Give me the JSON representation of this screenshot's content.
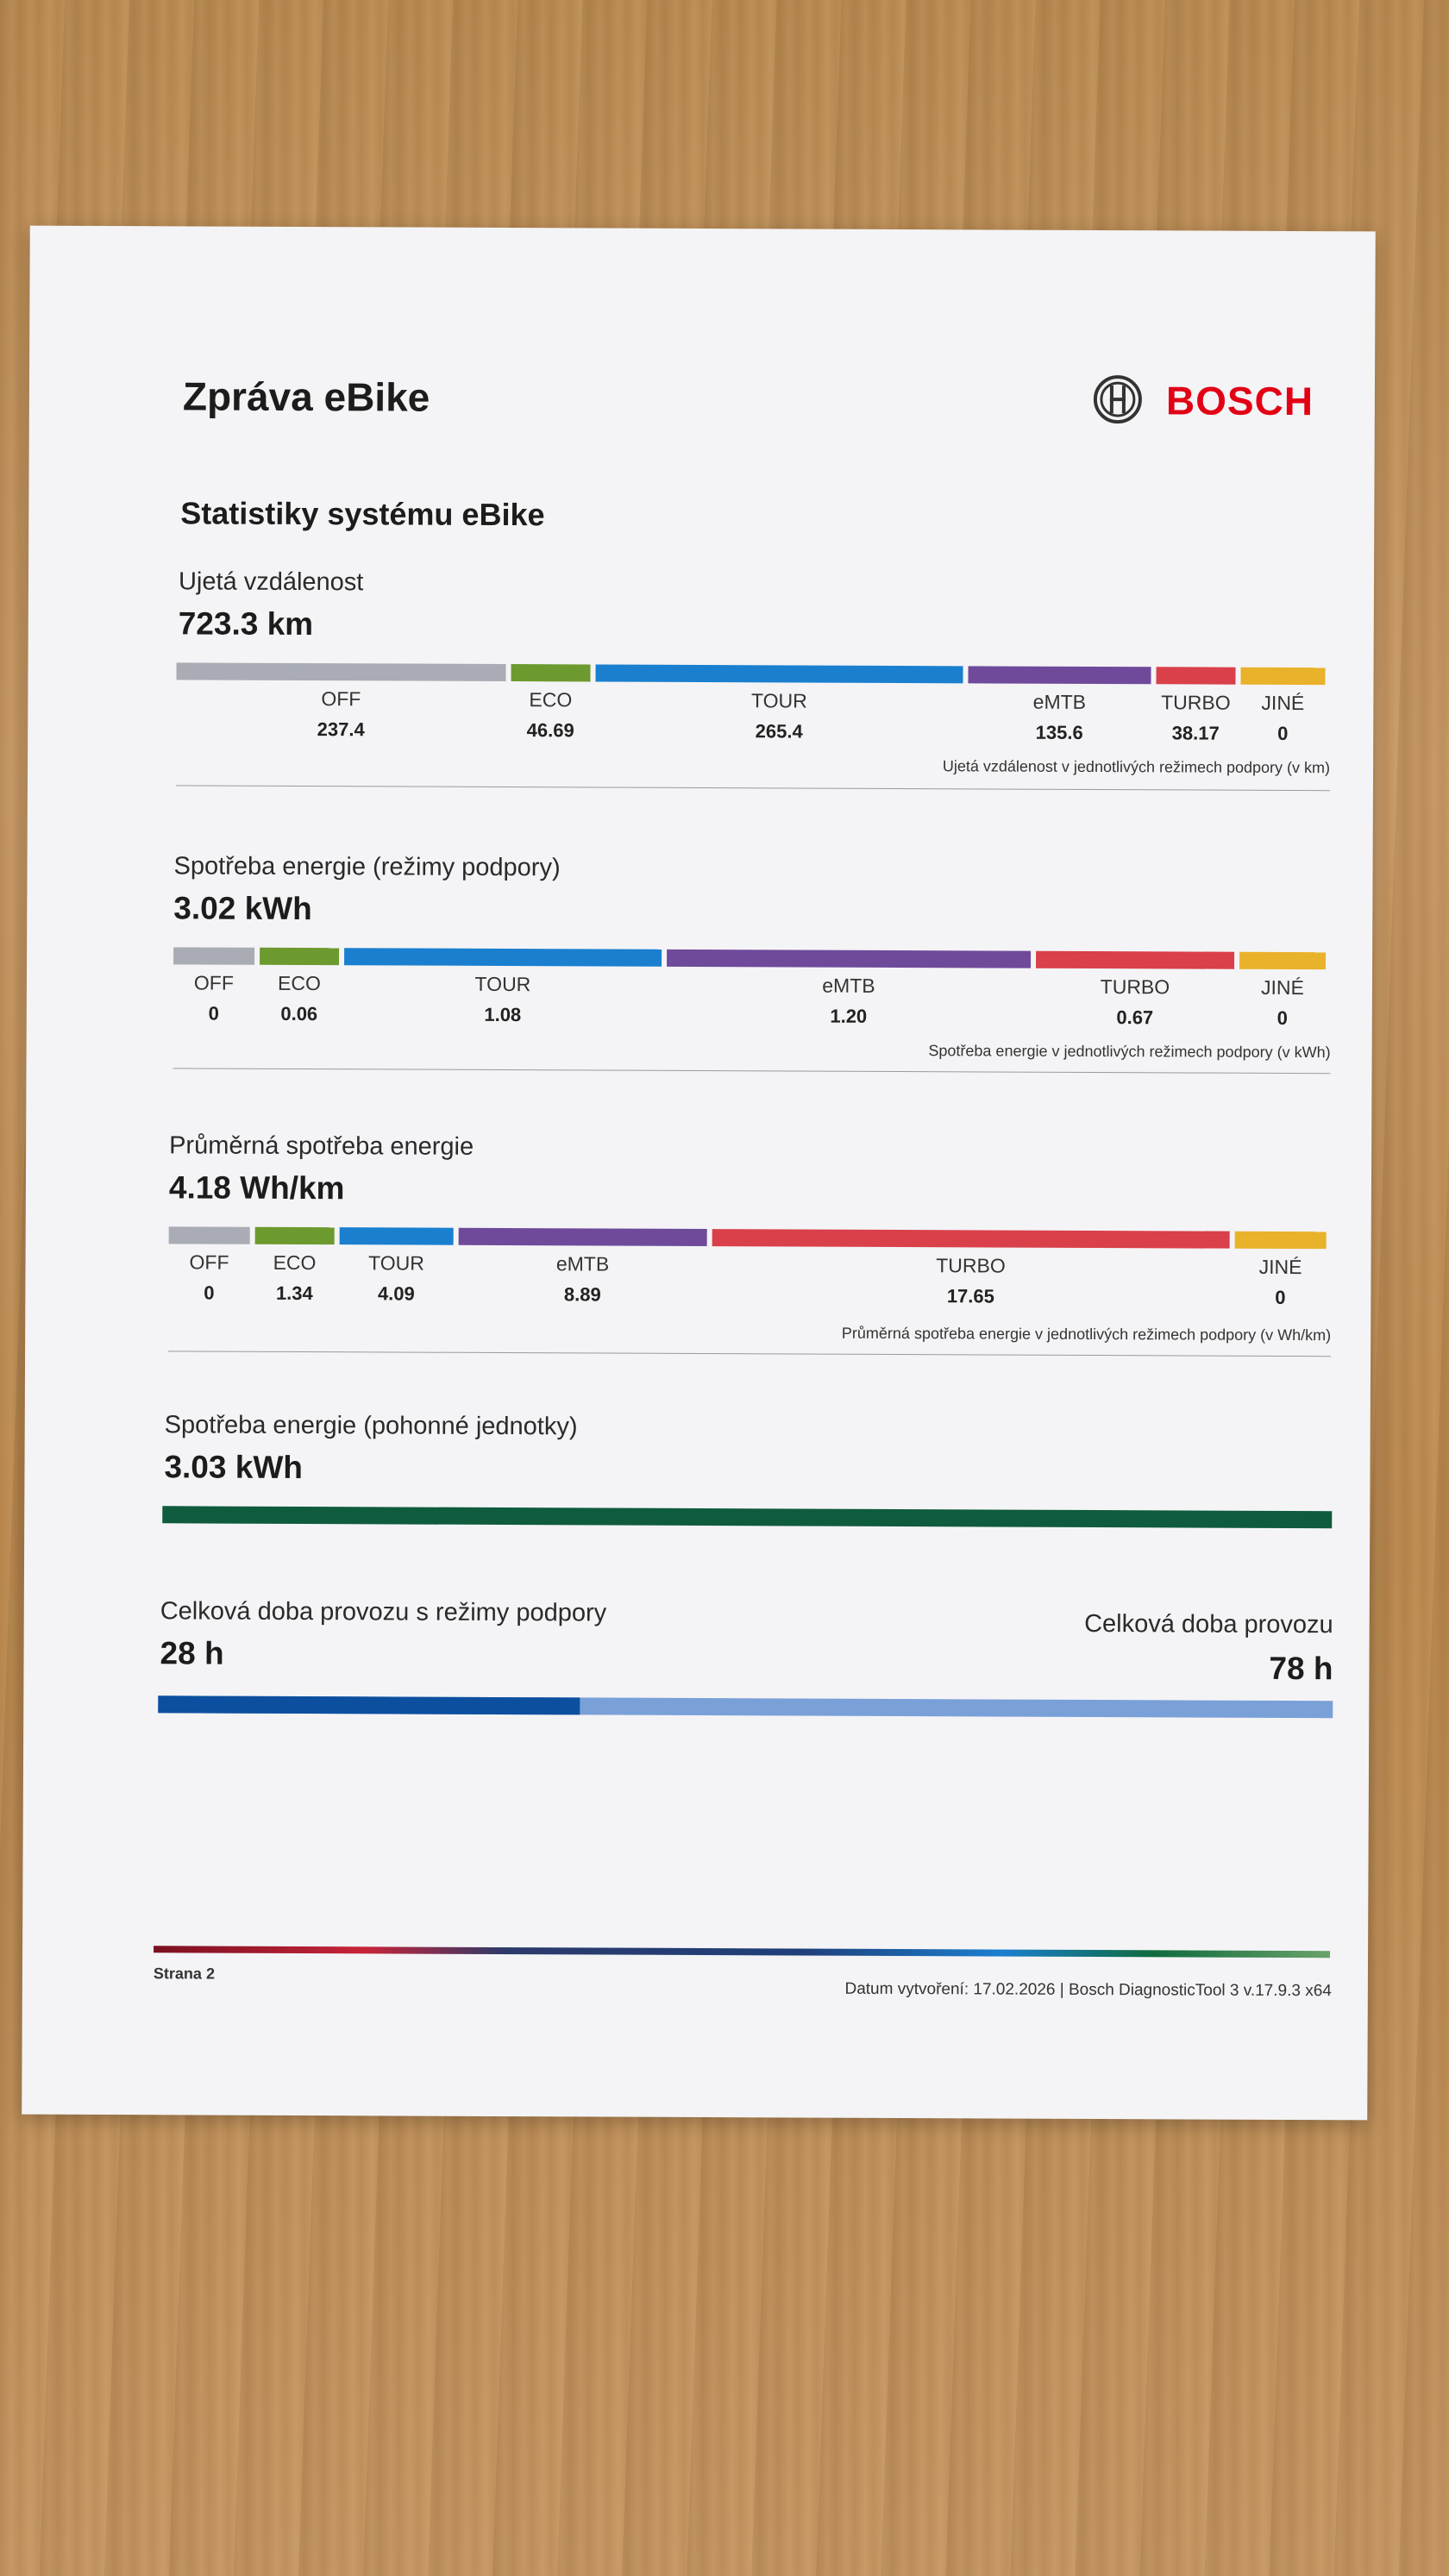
{
  "header": {
    "title": "Zpráva eBike",
    "brand": "BOSCH",
    "brand_color": "#e20015"
  },
  "section_title": "Statistiky systému eBike",
  "colors": {
    "off": "#a9acb4",
    "eco": "#6d9a2e",
    "tour": "#1a7fcf",
    "emtb": "#6f4a9b",
    "turbo": "#d9404a",
    "jine": "#e9b22b",
    "drive_unit": "#0f5b3e",
    "assist_time": "#0c4f9f",
    "total_time": "#7aa0d8"
  },
  "distance": {
    "label": "Ujetá vzdálenost",
    "total": "723.3 km",
    "note": "Ujetá vzdálenost v jednotlivých režimech podpory (v km)",
    "modes": [
      {
        "name": "OFF",
        "value": "237.4",
        "share": 0.328
      },
      {
        "name": "ECO",
        "value": "46.69",
        "share": 0.065
      },
      {
        "name": "TOUR",
        "value": "265.4",
        "share": 0.367
      },
      {
        "name": "eMTB",
        "value": "135.6",
        "share": 0.187
      },
      {
        "name": "TURBO",
        "value": "38.17",
        "share": 0.053
      },
      {
        "name": "JINÉ",
        "value": "0",
        "share": 0
      }
    ]
  },
  "energy_modes": {
    "label": "Spotřeba energie (režimy podpory)",
    "total": "3.02 kWh",
    "note": "Spotřeba energie v jednotlivých režimech podpory (v kWh)",
    "modes": [
      {
        "name": "OFF",
        "value": "0",
        "share": 0
      },
      {
        "name": "ECO",
        "value": "0.06",
        "share": 0.02
      },
      {
        "name": "TOUR",
        "value": "1.08",
        "share": 0.358
      },
      {
        "name": "eMTB",
        "value": "1.20",
        "share": 0.397
      },
      {
        "name": "TURBO",
        "value": "0.67",
        "share": 0.222
      },
      {
        "name": "JINÉ",
        "value": "0",
        "share": 0
      }
    ]
  },
  "avg_energy": {
    "label": "Průměrná spotřeba energie",
    "total": "4.18 Wh/km",
    "note": "Průměrná spotřeba energie v jednotlivých režimech podpory (v Wh/km)",
    "modes": [
      {
        "name": "OFF",
        "value": "0"
      },
      {
        "name": "ECO",
        "value": "1.34"
      },
      {
        "name": "TOUR",
        "value": "4.09"
      },
      {
        "name": "eMTB",
        "value": "8.89"
      },
      {
        "name": "TURBO",
        "value": "17.65"
      },
      {
        "name": "JINÉ",
        "value": "0"
      }
    ]
  },
  "drive_unit": {
    "label": "Spotřeba energie (pohonné jednotky)",
    "total": "3.03 kWh"
  },
  "operating_time": {
    "assist_label": "Celková doba provozu s režimy podpory",
    "assist_value": "28 h",
    "total_label": "Celková doba provozu",
    "total_value": "78 h",
    "assist_fraction": 0.359
  },
  "footer": {
    "page": "Strana 2",
    "info": "Datum vytvoření: 17.02.2026 | Bosch DiagnosticTool 3 v.17.9.3 x64"
  }
}
